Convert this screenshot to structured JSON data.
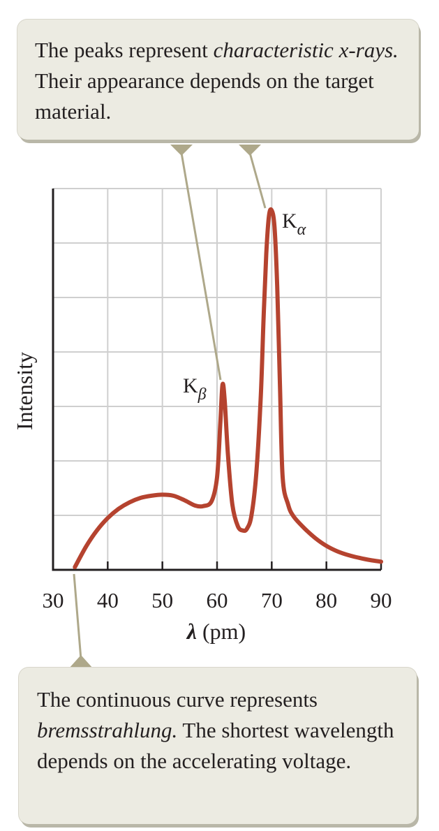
{
  "callouts": {
    "top": {
      "segments": [
        {
          "text": "The peaks represent ",
          "italic": false
        },
        {
          "text": "characteristic x-rays.",
          "italic": true
        },
        {
          "text": " Their appearance depends on the target material.",
          "italic": false
        }
      ]
    },
    "bottom": {
      "segments": [
        {
          "text": "The continuous curve represents ",
          "italic": false
        },
        {
          "text": "bremsstrahlung.",
          "italic": true
        },
        {
          "text": " The shortest wavelength depends on the accelerating voltage.",
          "italic": false
        }
      ]
    }
  },
  "colors": {
    "curve": "#b5432f",
    "grid": "#cfcfcf",
    "callout_fill": "#ecebe2",
    "leader": "#aea88a"
  },
  "chart_data": {
    "type": "line",
    "xlabel_symbol": "λ",
    "xlabel_unit": "(pm)",
    "ylabel": "Intensity",
    "xlim": [
      30,
      90
    ],
    "ylim": [
      0,
      7
    ],
    "x_ticks": [
      30,
      40,
      50,
      60,
      70,
      80,
      90
    ],
    "grid": true,
    "annotations": [
      {
        "text": "K",
        "subscript": "β",
        "x": 61,
        "y": 3.4
      },
      {
        "text": "K",
        "subscript": "α",
        "x": 70,
        "y": 6.6
      }
    ],
    "series": [
      {
        "x": [
          34,
          36,
          38,
          40,
          42,
          44,
          46,
          48,
          50,
          52,
          54,
          56,
          57.5,
          59,
          60,
          60.6,
          61,
          61.4,
          62,
          62.8,
          63.8,
          64.8,
          65.5,
          66.3,
          67.2,
          68,
          68.5,
          69,
          69.5,
          70,
          70.5,
          71,
          71.5,
          72,
          73,
          74,
          76,
          78,
          80,
          82,
          84,
          86,
          88,
          90
        ],
        "y": [
          0.05,
          0.42,
          0.72,
          0.95,
          1.12,
          1.24,
          1.32,
          1.36,
          1.38,
          1.36,
          1.28,
          1.18,
          1.17,
          1.26,
          1.7,
          2.7,
          3.4,
          3.1,
          2.1,
          1.2,
          0.8,
          0.72,
          0.76,
          1.0,
          1.8,
          3.2,
          4.6,
          5.8,
          6.5,
          6.6,
          6.3,
          5.2,
          3.4,
          1.7,
          1.2,
          0.98,
          0.76,
          0.58,
          0.44,
          0.34,
          0.27,
          0.22,
          0.18,
          0.15
        ]
      }
    ]
  }
}
